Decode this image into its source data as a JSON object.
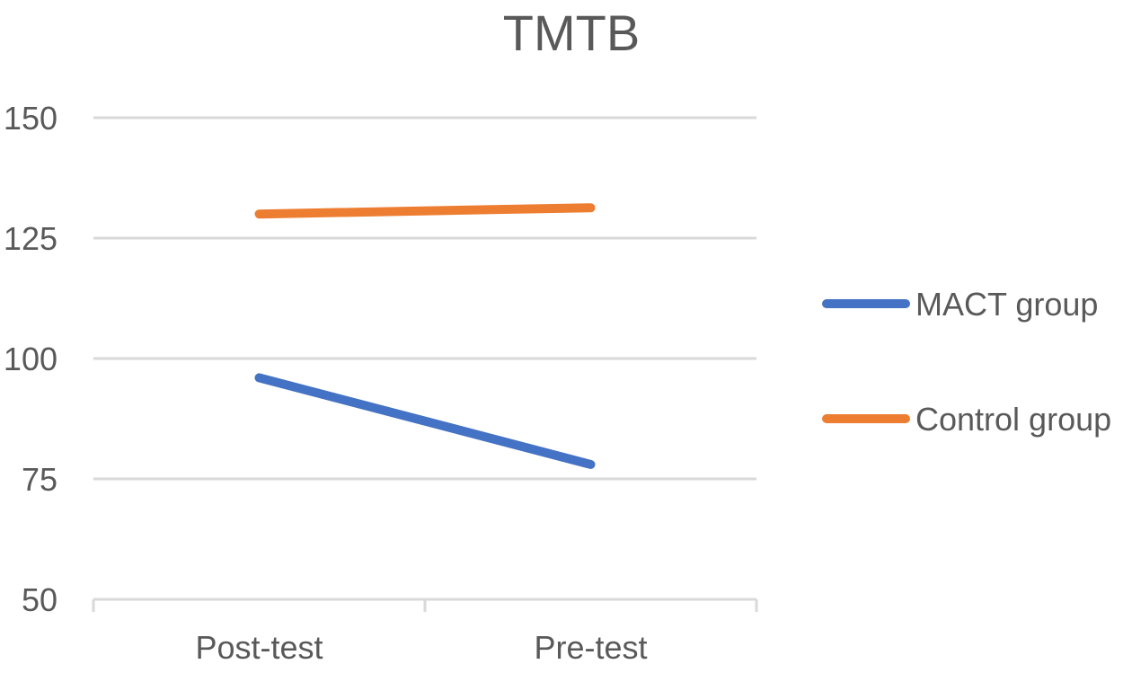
{
  "chart_data": {
    "type": "line",
    "title": "TMTB",
    "xlabel": "",
    "ylabel": "",
    "categories": [
      "Post-test",
      "Pre-test"
    ],
    "ylim": [
      50,
      150
    ],
    "yticks": [
      50,
      75,
      100,
      125,
      150
    ],
    "grid": true,
    "legend_position": "right",
    "series": [
      {
        "name": "MACT group",
        "values": [
          96,
          78
        ],
        "color": "#4472c4"
      },
      {
        "name": "Control group",
        "values": [
          130,
          131.3
        ],
        "color": "#ed7d31"
      }
    ]
  }
}
